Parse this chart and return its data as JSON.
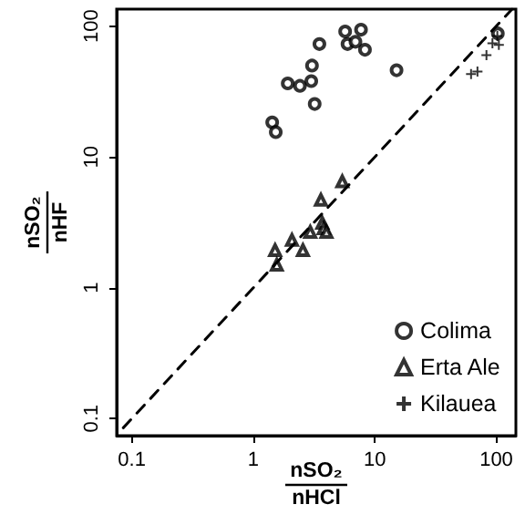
{
  "chart_data": {
    "type": "scatter",
    "xlabel": "nSO₂\nnHCl",
    "ylabel": "nSO₂\nnHF",
    "log": "xy",
    "xlim": [
      0.075,
      145
    ],
    "ylim": [
      0.074,
      135
    ],
    "xticks": [
      0.1,
      1,
      10,
      100
    ],
    "yticks": [
      0.1,
      1,
      10,
      100
    ],
    "grid": false,
    "legend": "bottom right",
    "series": [
      {
        "name": "Colima",
        "color": "#000000",
        "marker": "circle",
        "x": [
          1.43,
          1.53,
          1.92,
          2.42,
          3.04,
          3.0,
          3.2,
          3.5,
          5.7,
          5.96,
          6.93,
          7.7,
          8.3,
          15.1,
          103
        ],
        "values": [
          18.4,
          15.5,
          36.5,
          35,
          50,
          38,
          25.4,
          73,
          91,
          73,
          76,
          94,
          66,
          46,
          88
        ]
      },
      {
        "name": "Erta Ale",
        "color": "#000000",
        "marker": "triangle",
        "x": [
          1.51,
          1.56,
          2.08,
          2.56,
          2.94,
          3.6,
          3.7,
          3.8,
          4.0,
          5.4
        ],
        "values": [
          1.94,
          1.5,
          2.32,
          1.94,
          2.67,
          4.7,
          3.13,
          2.85,
          2.67,
          6.5
        ]
      },
      {
        "name": "Kilauea",
        "color": "#000000",
        "marker": "cross",
        "x": [
          62,
          70,
          83,
          93,
          102,
          105
        ],
        "values": [
          43,
          45,
          60,
          74,
          84,
          72
        ]
      },
      {
        "type": "line",
        "color": "#000000",
        "line_style": "dashed",
        "marker": "none",
        "x": [
          0.085,
          135
        ],
        "values": [
          0.085,
          135
        ]
      }
    ]
  }
}
